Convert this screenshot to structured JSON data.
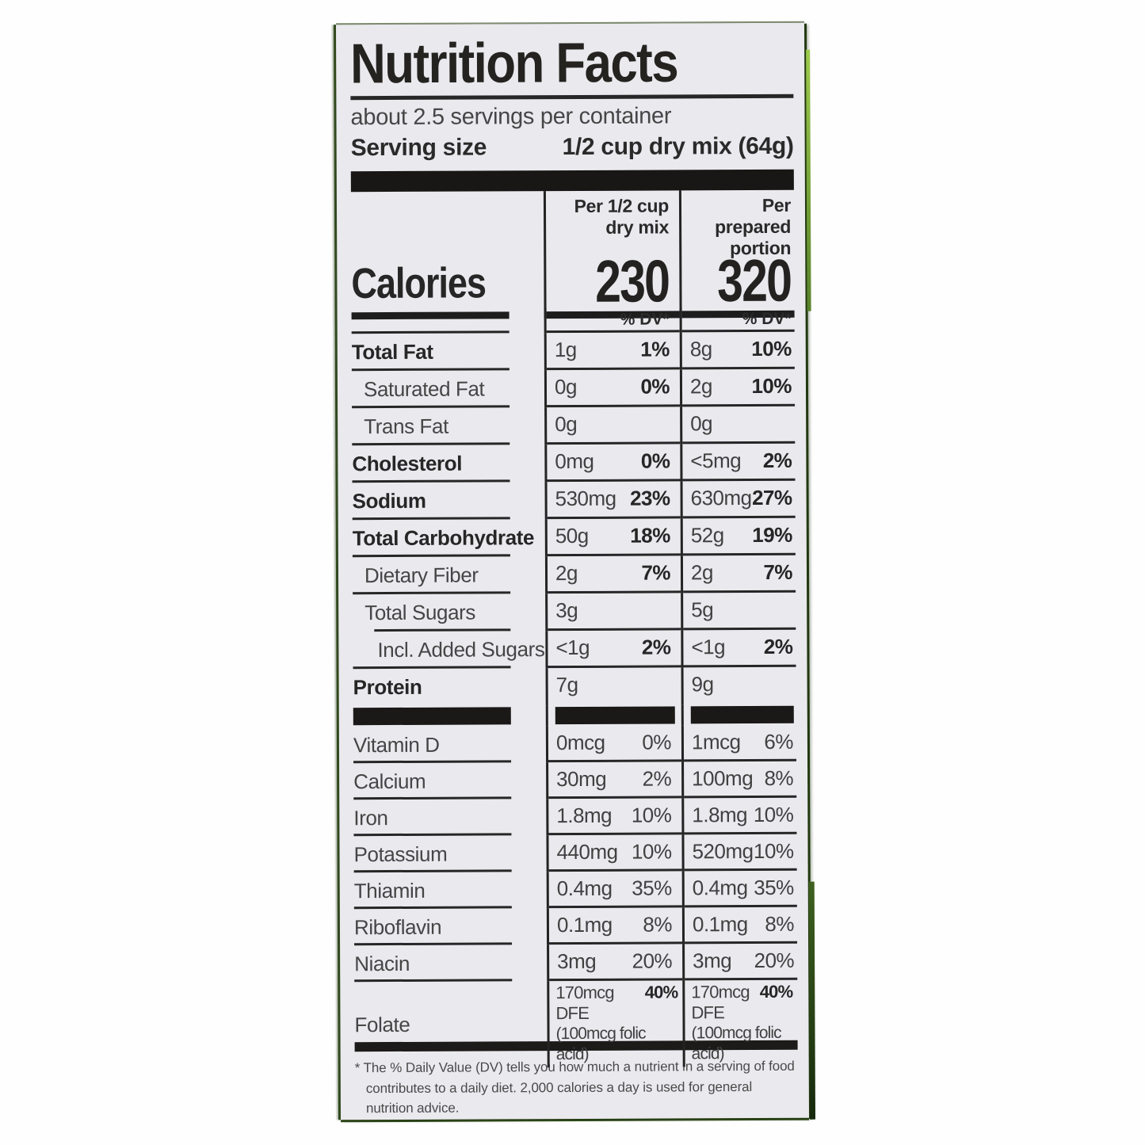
{
  "label": {
    "title": "Nutrition Facts",
    "servings_per_container": "about 2.5 servings per container",
    "serving_size": {
      "label": "Serving size",
      "value": "1/2 cup dry mix (64g)"
    },
    "calories": {
      "word": "Calories",
      "col1_header": "Per 1/2 cup\ndry mix",
      "col1_value": "230",
      "col2_header": "Per prepared\nportion",
      "col2_value": "320"
    },
    "dv_header": "% DV*",
    "rows": [
      {
        "name": "Total Fat",
        "c1": "1g",
        "dv1": "1%",
        "c2": "8g",
        "dv2": "10%"
      },
      {
        "name": "Saturated Fat",
        "c1": "0g",
        "dv1": "0%",
        "c2": "2g",
        "dv2": "10%"
      },
      {
        "name": "Trans Fat",
        "c1": "0g",
        "dv1": "",
        "c2": "0g",
        "dv2": ""
      },
      {
        "name": "Cholesterol",
        "c1": "0mg",
        "dv1": "0%",
        "c2": "<5mg",
        "dv2": "2%"
      },
      {
        "name": "Sodium",
        "c1": "530mg",
        "dv1": "23%",
        "c2": "630mg",
        "dv2": "27%"
      },
      {
        "name": "Total Carbohydrate",
        "c1": "50g",
        "dv1": "18%",
        "c2": "52g",
        "dv2": "19%"
      },
      {
        "name": "Dietary Fiber",
        "c1": "2g",
        "dv1": "7%",
        "c2": "2g",
        "dv2": "7%"
      },
      {
        "name": "Total Sugars",
        "c1": "3g",
        "dv1": "",
        "c2": "5g",
        "dv2": ""
      },
      {
        "name": "Incl. Added Sugars",
        "c1": "<1g",
        "dv1": "2%",
        "c2": "<1g",
        "dv2": "2%"
      },
      {
        "name": "Protein",
        "c1": "7g",
        "dv1": "",
        "c2": "9g",
        "dv2": ""
      }
    ],
    "vitamins": [
      {
        "name": "Vitamin D",
        "c1": "0mcg",
        "dv1": "0%",
        "c2": "1mcg",
        "dv2": "6%"
      },
      {
        "name": "Calcium",
        "c1": "30mg",
        "dv1": "2%",
        "c2": "100mg",
        "dv2": "8%"
      },
      {
        "name": "Iron",
        "c1": "1.8mg",
        "dv1": "10%",
        "c2": "1.8mg",
        "dv2": "10%"
      },
      {
        "name": "Potassium",
        "c1": "440mg",
        "dv1": "10%",
        "c2": "520mg",
        "dv2": "10%"
      },
      {
        "name": "Thiamin",
        "c1": "0.4mg",
        "dv1": "35%",
        "c2": "0.4mg",
        "dv2": "35%"
      },
      {
        "name": "Riboflavin",
        "c1": "0.1mg",
        "dv1": "8%",
        "c2": "0.1mg",
        "dv2": "8%"
      },
      {
        "name": "Niacin",
        "c1": "3mg",
        "dv1": "20%",
        "c2": "3mg",
        "dv2": "20%"
      }
    ],
    "folate": {
      "name": "Folate",
      "c1": "170mcg DFE",
      "dv1": "40%",
      "c1_sub": "(100mcg folic acid)",
      "c2": "170mcg DFE",
      "dv2": "40%",
      "c2_sub": "(100mcg folic acid)"
    },
    "footnote": "* The % Daily Value (DV) tells you how much a nutrient in a serving of food contributes to a daily diet. 2,000 calories a day is used for general nutrition advice."
  }
}
